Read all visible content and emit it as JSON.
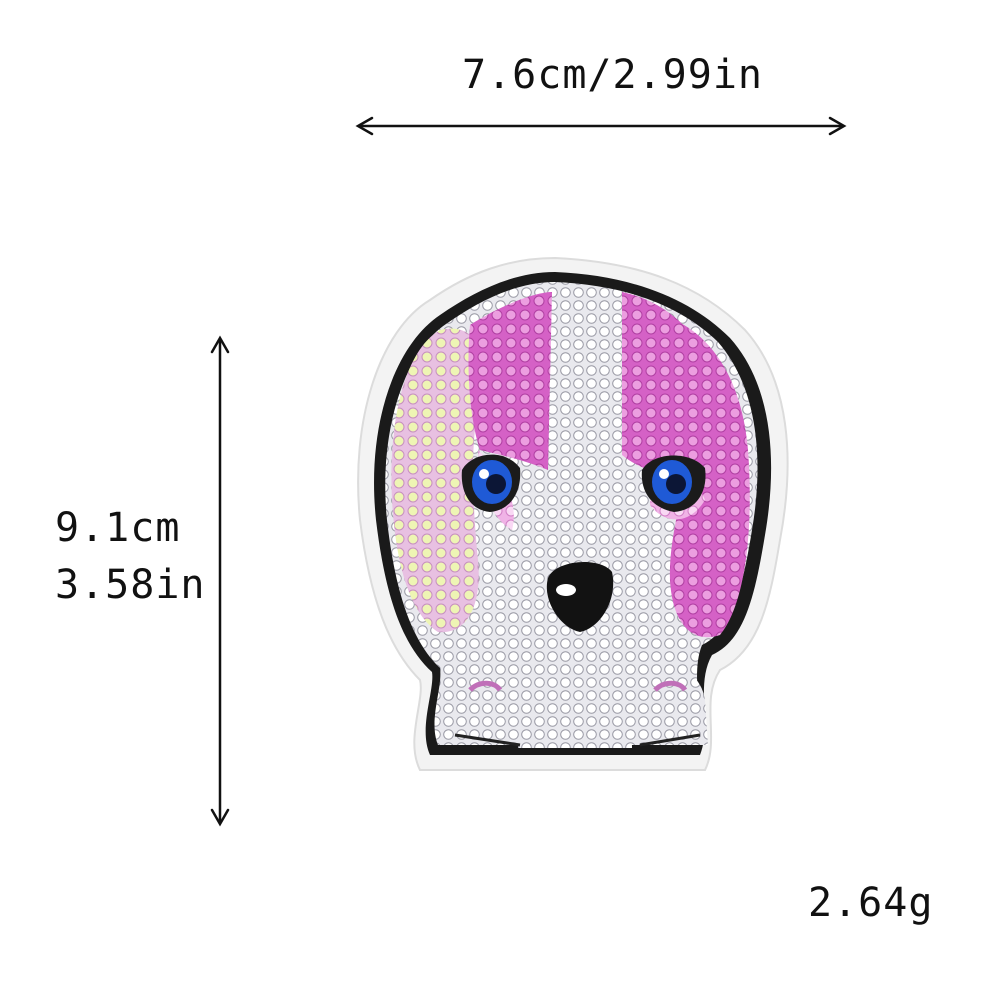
{
  "dimensions": {
    "width": "7.6cm/2.99in",
    "height_cm": "9.1cm",
    "height_in": "3.58in"
  },
  "weight": "2.64g",
  "colors": {
    "background": "#ffffff",
    "felt_border": "#f2f2f2",
    "stitch_edge": "#151515",
    "pink_sequin": "#d85fc8",
    "light_pink": "#f1b6e8",
    "iridescent": "#e9f3b0",
    "white_sequin": "#ffffff",
    "eye_blue": "#1e5ad8",
    "nose": "#121212"
  }
}
